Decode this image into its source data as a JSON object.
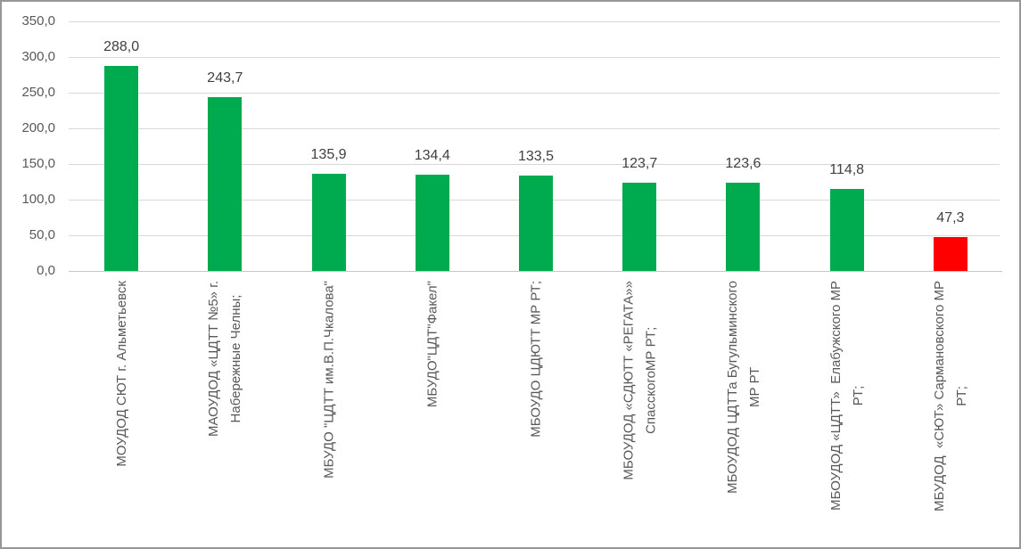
{
  "chart_data": {
    "type": "bar",
    "title": "",
    "xlabel": "",
    "ylabel": "",
    "categories": [
      "МОУДОД СЮТ г. Альметьевск",
      "МАОУДОД «ЦДТТ №5» г.\nНабережные Челны;",
      "МБУДО \"ЦДТТ им.В.П.Чкалова\"",
      "МБУДО\"ЦДТ\"Факел\"",
      "МБОУДО ЦДЮТТ МР РТ;",
      "МБОУДОД «СДЮТТ «РЕГАТА»»\nСпасскогоМР РТ;",
      "МБОУДОД ЦДТТа Бугульминского\nМР РТ",
      "МБОУДОД «ЦДТТ»  Елабужского МР\nРТ;",
      "МБУДОД  «СЮТ» Сармановского МР\nРТ;"
    ],
    "values": [
      288.0,
      243.7,
      135.9,
      134.4,
      133.5,
      123.7,
      123.6,
      114.8,
      47.3
    ],
    "value_labels": [
      "288,0",
      "243,7",
      "135,9",
      "134,4",
      "133,5",
      "123,7",
      "123,6",
      "114,8",
      "47,3"
    ],
    "bar_colors": [
      "#00AA4F",
      "#00AA4F",
      "#00AA4F",
      "#00AA4F",
      "#00AA4F",
      "#00AA4F",
      "#00AA4F",
      "#00AA4F",
      "#FF0000"
    ],
    "y_ticks": [
      {
        "value": 350,
        "label": "350,0"
      },
      {
        "value": 300,
        "label": "300,0"
      },
      {
        "value": 250,
        "label": "250,0"
      },
      {
        "value": 200,
        "label": "200,0"
      },
      {
        "value": 150,
        "label": "150,0"
      },
      {
        "value": 100,
        "label": "100,0"
      },
      {
        "value": 50,
        "label": "50,0"
      },
      {
        "value": 0,
        "label": "0,0"
      }
    ],
    "ylim": [
      0,
      350
    ],
    "grid": true,
    "legend": false,
    "colors": {
      "bar_default": "#00AA4F",
      "bar_highlight": "#FF0000",
      "gridline": "#D9D9D9",
      "axis_line": "#C6C6C6",
      "tick_label": "#595959",
      "category_label": "#595959",
      "value_label": "#404040",
      "frame_border": "#97979b",
      "background": "#FFFFFF"
    }
  }
}
